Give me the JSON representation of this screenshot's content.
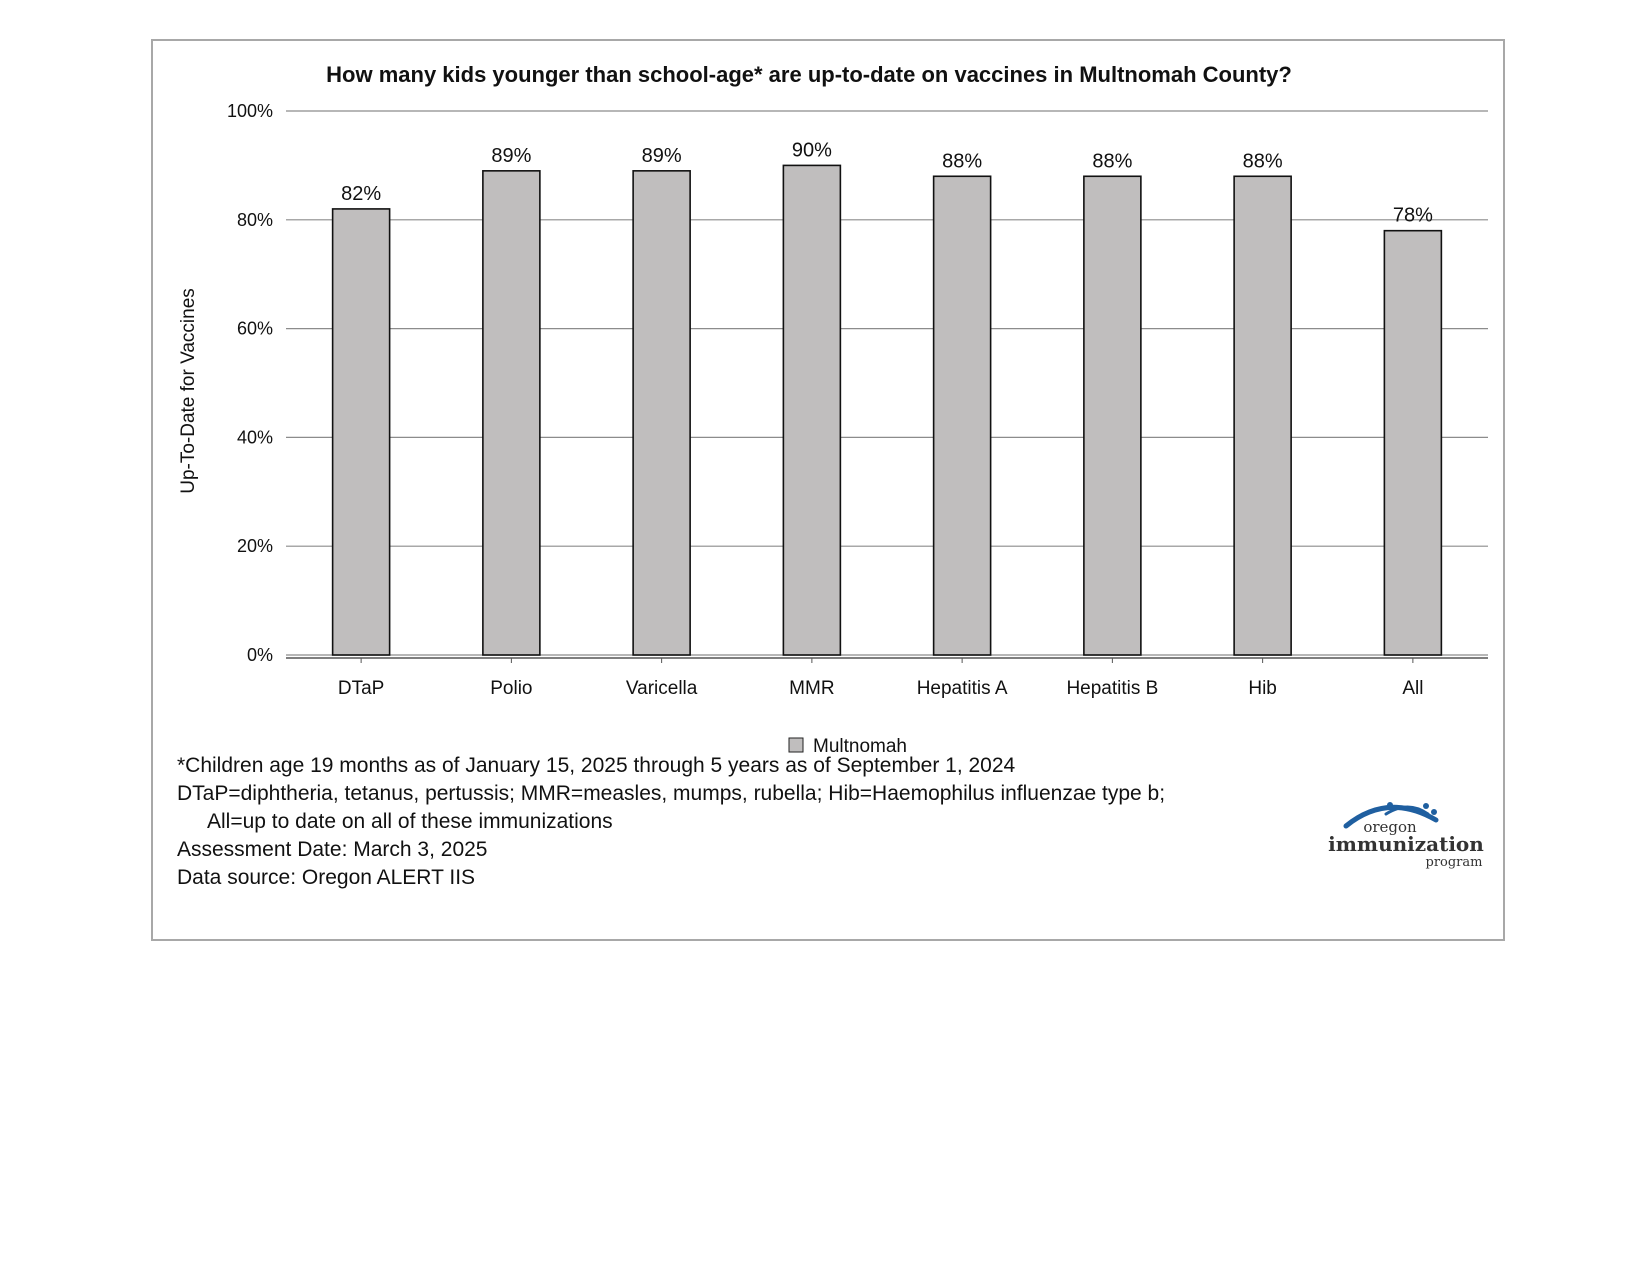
{
  "chart_data": {
    "type": "bar",
    "title": "How many kids younger than school-age* are up-to-date on vaccines in Multnomah County?",
    "ylabel": "Up-To-Date for Vaccines",
    "xlabel": "",
    "ylim": [
      0,
      100
    ],
    "yticks": [
      "0%",
      "20%",
      "40%",
      "60%",
      "80%",
      "100%"
    ],
    "ytick_values": [
      0,
      20,
      40,
      60,
      80,
      100
    ],
    "grid": true,
    "legend_position": "bottom",
    "categories": [
      "DTaP",
      "Polio",
      "Varicella",
      "MMR",
      "Hepatitis A",
      "Hepatitis B",
      "Hib",
      "All"
    ],
    "series": [
      {
        "name": "Multnomah",
        "values": [
          82,
          89,
          89,
          90,
          88,
          88,
          88,
          78
        ],
        "labels": [
          "82%",
          "89%",
          "89%",
          "90%",
          "88%",
          "88%",
          "88%",
          "78%"
        ],
        "color": "#c0bebe"
      }
    ]
  },
  "notes": {
    "footnote": "*Children age 19 months as of January 15, 2025 through 5 years as of September 1, 2024",
    "abbrev_1": "DTaP=diphtheria, tetanus, pertussis; MMR=measles, mumps, rubella; Hib=Haemophilus influenzae type b;",
    "abbrev_2": "All=up to date on all of these immunizations",
    "assessment_date": "Assessment Date: March 3, 2025",
    "data_source": "Data source: Oregon ALERT IIS"
  },
  "logo": {
    "line1": "oregon",
    "line2": "immunization",
    "line3": "program",
    "color": "#1f5fa0"
  }
}
